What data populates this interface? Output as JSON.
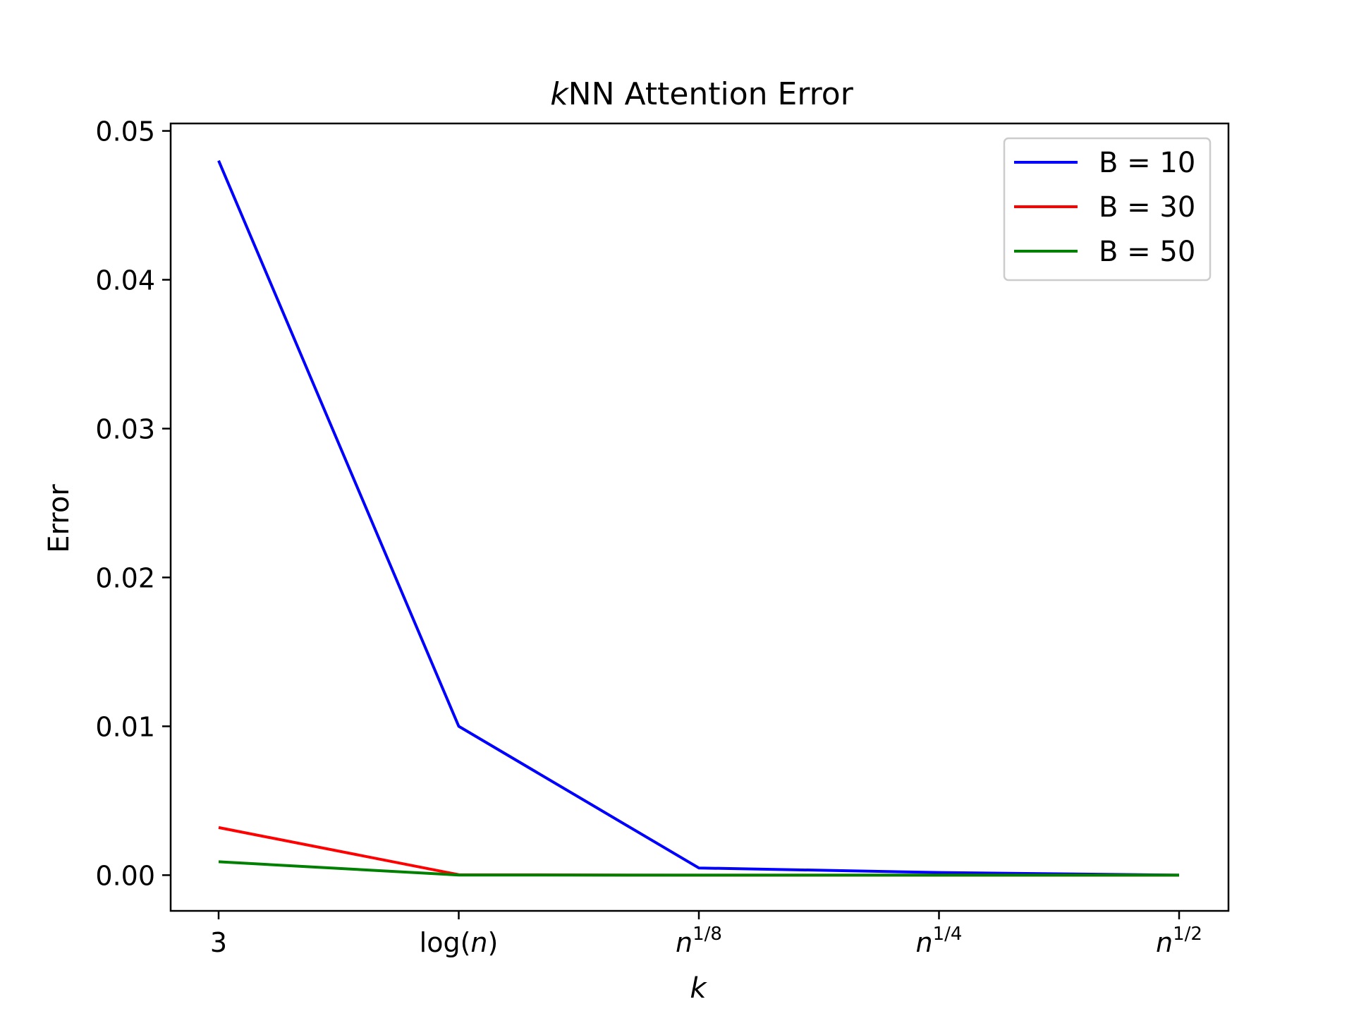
{
  "chart_data": {
    "type": "line",
    "title": {
      "italic": "k",
      "rest": "NN Attention Error"
    },
    "xlabel": "k",
    "ylabel": "Error",
    "categories": [
      {
        "plain": "3"
      },
      {
        "pre": "log(",
        "italic": "n",
        "post": ")"
      },
      {
        "italic": "n",
        "sup": "1/8"
      },
      {
        "italic": "n",
        "sup": "1/4"
      },
      {
        "italic": "n",
        "sup": "1/2"
      }
    ],
    "ylim": [
      -0.0024,
      0.0505
    ],
    "yticks": [
      "0.00",
      "0.01",
      "0.02",
      "0.03",
      "0.04",
      "0.05"
    ],
    "ytick_values": [
      0.0,
      0.01,
      0.02,
      0.03,
      0.04,
      0.05
    ],
    "grid": false,
    "legend_position": "top-right",
    "series": [
      {
        "name": "B = 10",
        "color": "#0000ff",
        "values": [
          0.048,
          0.01,
          0.00048,
          0.00018,
          0.0
        ]
      },
      {
        "name": "B = 30",
        "color": "#ff0000",
        "values": [
          0.0032,
          3e-05,
          0.0,
          0.0,
          0.0
        ]
      },
      {
        "name": "B = 50",
        "color": "#008000",
        "values": [
          0.0009,
          1e-05,
          0.0,
          0.0,
          0.0
        ]
      }
    ]
  }
}
